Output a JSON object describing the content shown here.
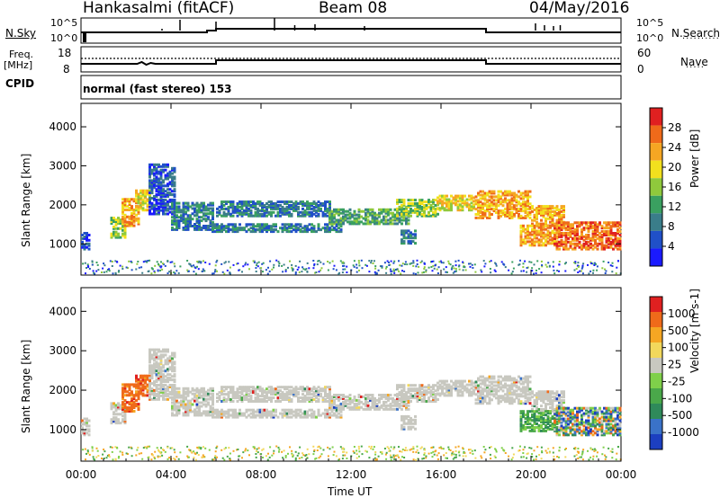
{
  "header": {
    "station": "Hankasalmi (fitACF)",
    "beam": "Beam 08",
    "date": "04/May/2016"
  },
  "colors": {
    "power": [
      "#1a1aff",
      "#2050c8",
      "#3a7d8a",
      "#3aa060",
      "#8fc93c",
      "#f2e01e",
      "#f5a623",
      "#ef6a1a",
      "#e02020"
    ],
    "velocity": [
      "#1c3fc0",
      "#3a72c8",
      "#2f8a5a",
      "#4aa84a",
      "#7fd04a",
      "#c8c8c0",
      "#f2d85c",
      "#f5a623",
      "#ef6a1a",
      "#e02020"
    ],
    "gray": "#c8c8c0"
  },
  "params_panel": {
    "nsky_label": "N.Sky",
    "nsky_ticks": [
      "10^5",
      "10^0"
    ],
    "nsearch_ticks": [
      "10^5",
      "10^0"
    ],
    "nsearch_label": "N.Search",
    "freq_label_1": "Freq.",
    "freq_label_2": "[MHz]",
    "freq_ticks": [
      "18",
      "8"
    ],
    "nave_ticks": [
      "60",
      "0"
    ],
    "nave_label": "Nave",
    "cpid_label": "CPID",
    "cpid_text": "normal (fast stereo) 153"
  },
  "chart_data": [
    {
      "type": "heatmap",
      "name": "power-panel",
      "ylabel": "Slant Range [km]",
      "yticks": [
        1000,
        2000,
        3000,
        4000
      ],
      "ylim": [
        200,
        4600
      ],
      "xlim_hours": [
        0,
        24
      ],
      "colorbar": {
        "label": "Power [dB]",
        "ticks": [
          "4",
          "8",
          "12",
          "16",
          "20",
          "24",
          "28"
        ]
      }
    },
    {
      "type": "heatmap",
      "name": "velocity-panel",
      "ylabel": "Slant Range [km]",
      "yticks": [
        1000,
        2000,
        3000,
        4000
      ],
      "ylim": [
        200,
        4600
      ],
      "xlim_hours": [
        0,
        24
      ],
      "xlabel": "Time UT",
      "xticks": [
        "00:00",
        "04:00",
        "08:00",
        "12:00",
        "16:00",
        "20:00",
        "00:00"
      ],
      "colorbar": {
        "label": "Velocity [m s-1]",
        "ticks": [
          "1000",
          "500",
          "100",
          "25",
          "-25",
          "-100",
          "-500",
          "-1000"
        ]
      }
    }
  ]
}
